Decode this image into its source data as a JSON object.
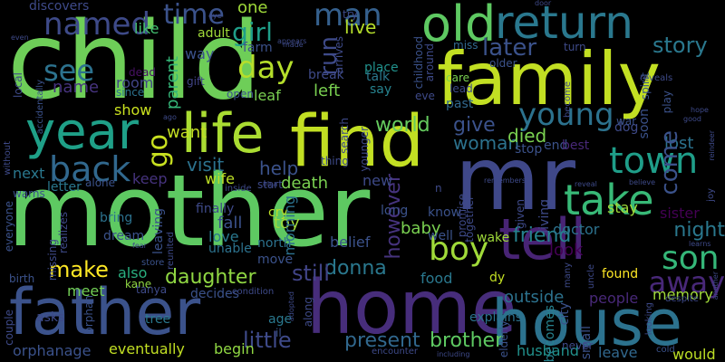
{
  "words": [
    {
      "text": "child",
      "color": "#6ece58",
      "vertical": false
    },
    {
      "text": "mother",
      "color": "#5ec962",
      "vertical": false
    },
    {
      "text": "family",
      "color": "#c2df23",
      "vertical": false
    },
    {
      "text": "home",
      "color": "#472d7b",
      "vertical": false
    },
    {
      "text": "mr",
      "color": "#3f4889",
      "vertical": false
    },
    {
      "text": "find",
      "color": "#c2df23",
      "vertical": false
    },
    {
      "text": "father",
      "color": "#3b528b",
      "vertical": false
    },
    {
      "text": "house",
      "color": "#2c728e",
      "vertical": false
    },
    {
      "text": "tell",
      "color": "#482475",
      "vertical": false
    },
    {
      "text": "life",
      "color": "#aadc32",
      "vertical": false
    },
    {
      "text": "year",
      "color": "#1fa088",
      "vertical": false
    },
    {
      "text": "old",
      "color": "#5ec962",
      "vertical": false
    },
    {
      "text": "return",
      "color": "#2a788e",
      "vertical": false
    },
    {
      "text": "take",
      "color": "#38b977",
      "vertical": false
    },
    {
      "text": "town",
      "color": "#1f9e89",
      "vertical": false
    },
    {
      "text": "young",
      "color": "#2c728e",
      "vertical": false
    },
    {
      "text": "boy",
      "color": "#a0da39",
      "vertical": false
    },
    {
      "text": "back",
      "color": "#31688e",
      "vertical": false
    },
    {
      "text": "son",
      "color": "#35b779",
      "vertical": false
    },
    {
      "text": "away",
      "color": "#482878",
      "vertical": false
    },
    {
      "text": "named",
      "color": "#3e4a89",
      "vertical": false
    },
    {
      "text": "man",
      "color": "#35608d",
      "vertical": false
    },
    {
      "text": "later",
      "color": "#3b528b",
      "vertical": false
    },
    {
      "text": "day",
      "color": "#b5de2b",
      "vertical": false
    },
    {
      "text": "see",
      "color": "#2c728e",
      "vertical": false
    },
    {
      "text": "time",
      "color": "#3b528b",
      "vertical": false
    },
    {
      "text": "girl",
      "color": "#1f9e89",
      "vertical": false
    },
    {
      "text": "story",
      "color": "#2a788e",
      "vertical": false
    },
    {
      "text": "little",
      "color": "#3e4a89",
      "vertical": false
    },
    {
      "text": "present",
      "color": "#31688e",
      "vertical": false
    },
    {
      "text": "brother",
      "color": "#5ec962",
      "vertical": false
    },
    {
      "text": "daughter",
      "color": "#90d743",
      "vertical": false
    },
    {
      "text": "donna",
      "color": "#2a788e",
      "vertical": false
    },
    {
      "text": "make",
      "color": "#fde725",
      "vertical": false
    },
    {
      "text": "still",
      "color": "#414487",
      "vertical": false
    },
    {
      "text": "friend",
      "color": "#26828e",
      "vertical": false
    },
    {
      "text": "night",
      "color": "#2a788e",
      "vertical": false
    },
    {
      "text": "world",
      "color": "#65cb5e",
      "vertical": false
    },
    {
      "text": "give",
      "color": "#3b528b",
      "vertical": false
    },
    {
      "text": "woman",
      "color": "#2c728e",
      "vertical": false
    },
    {
      "text": "died",
      "color": "#7ad151",
      "vertical": false
    },
    {
      "text": "visit",
      "color": "#2c728e",
      "vertical": false
    },
    {
      "text": "lost",
      "color": "#2c728e",
      "vertical": false
    },
    {
      "text": "come",
      "color": "#3b528b",
      "vertical": true
    },
    {
      "text": "go",
      "color": "#c8e020",
      "vertical": true
    },
    {
      "text": "run",
      "color": "#3e4a89",
      "vertical": true
    },
    {
      "text": "however",
      "color": "#46337e",
      "vertical": true
    },
    {
      "text": "live",
      "color": "#b5de2b",
      "vertical": false
    },
    {
      "text": "like",
      "color": "#44bf70",
      "vertical": false
    },
    {
      "text": "one",
      "color": "#9fda3a",
      "vertical": false
    },
    {
      "text": "parent",
      "color": "#35b779",
      "vertical": true
    },
    {
      "text": "want",
      "color": "#c2df23",
      "vertical": false
    },
    {
      "text": "help",
      "color": "#3b528b",
      "vertical": false
    },
    {
      "text": "left",
      "color": "#7ad151",
      "vertical": false
    },
    {
      "text": "leaf",
      "color": "#7ad151",
      "vertical": false
    },
    {
      "text": "name",
      "color": "#46337e",
      "vertical": false
    },
    {
      "text": "room",
      "color": "#414487",
      "vertical": false
    },
    {
      "text": "way",
      "color": "#3b528b",
      "vertical": false
    },
    {
      "text": "adult",
      "color": "#a0da39",
      "vertical": false
    },
    {
      "text": "farm",
      "color": "#3b528b",
      "vertical": false
    },
    {
      "text": "show",
      "color": "#cae11f",
      "vertical": false
    },
    {
      "text": "also",
      "color": "#29af7f",
      "vertical": false
    },
    {
      "text": "meet",
      "color": "#73d056",
      "vertical": false
    },
    {
      "text": "next",
      "color": "#2a788e",
      "vertical": false
    },
    {
      "text": "letter",
      "color": "#2a788e",
      "vertical": false
    },
    {
      "text": "keep",
      "color": "#46337e",
      "vertical": false
    },
    {
      "text": "wife",
      "color": "#bddf26",
      "vertical": false
    },
    {
      "text": "alone",
      "color": "#3b528b",
      "vertical": false
    },
    {
      "text": "death",
      "color": "#7ad151",
      "vertical": false
    },
    {
      "text": "fall",
      "color": "#3b528b",
      "vertical": false
    },
    {
      "text": "finally",
      "color": "#3e4a89",
      "vertical": false
    },
    {
      "text": "love",
      "color": "#2a788e",
      "vertical": false
    },
    {
      "text": "unable",
      "color": "#2c728e",
      "vertical": false
    },
    {
      "text": "toy",
      "color": "#9fda3a",
      "vertical": false
    },
    {
      "text": "cry",
      "color": "#bddf26",
      "vertical": false
    },
    {
      "text": "move",
      "color": "#3b528b",
      "vertical": false
    },
    {
      "text": "north",
      "color": "#2c728e",
      "vertical": false
    },
    {
      "text": "morning",
      "color": "#2c728e",
      "vertical": true
    },
    {
      "text": "belief",
      "color": "#3b528b",
      "vertical": false
    },
    {
      "text": "baby",
      "color": "#7ad151",
      "vertical": false
    },
    {
      "text": "know",
      "color": "#3b528b",
      "vertical": false
    },
    {
      "text": "well",
      "color": "#3b528b",
      "vertical": false
    },
    {
      "text": "wake",
      "color": "#9fda3a",
      "vertical": false
    },
    {
      "text": "food",
      "color": "#2a788e",
      "vertical": false
    },
    {
      "text": "look",
      "color": "#440154",
      "vertical": false
    },
    {
      "text": "found",
      "color": "#fde725",
      "vertical": false
    },
    {
      "text": "doctor",
      "color": "#2c728e",
      "vertical": false
    },
    {
      "text": "outside",
      "color": "#2c728e",
      "vertical": false
    },
    {
      "text": "memory",
      "color": "#a0da39",
      "vertical": false
    },
    {
      "text": "people",
      "color": "#482878",
      "vertical": false
    },
    {
      "text": "explains",
      "color": "#2c728e",
      "vertical": false
    },
    {
      "text": "husband",
      "color": "#21918c",
      "vertical": false
    },
    {
      "text": "leave",
      "color": "#31688e",
      "vertical": false
    },
    {
      "text": "would",
      "color": "#bddf26",
      "vertical": false
    },
    {
      "text": "eventually",
      "color": "#c2df23",
      "vertical": false
    },
    {
      "text": "begin",
      "color": "#90d743",
      "vertical": false
    },
    {
      "text": "tree",
      "color": "#2a788e",
      "vertical": false
    },
    {
      "text": "decides",
      "color": "#3b528b",
      "vertical": false
    },
    {
      "text": "orphanage",
      "color": "#3b528b",
      "vertical": false
    },
    {
      "text": "asks",
      "color": "#3e4a89",
      "vertical": false
    },
    {
      "text": "age",
      "color": "#2a788e",
      "vertical": false
    },
    {
      "text": "dream",
      "color": "#3b528b",
      "vertical": false
    },
    {
      "text": "bring",
      "color": "#2c728e",
      "vertical": false
    },
    {
      "text": "stay",
      "color": "#a0da39",
      "vertical": false
    },
    {
      "text": "sister",
      "color": "#440154",
      "vertical": false
    },
    {
      "text": "small",
      "color": "#3b528b",
      "vertical": true
    },
    {
      "text": "becomes",
      "color": "#26828e",
      "vertical": true
    },
    {
      "text": "talk",
      "color": "#2a788e",
      "vertical": false
    },
    {
      "text": "say",
      "color": "#26828e",
      "vertical": false
    },
    {
      "text": "care",
      "color": "#7ad151",
      "vertical": false
    },
    {
      "text": "past",
      "color": "#31688e",
      "vertical": false
    },
    {
      "text": "place",
      "color": "#21918c",
      "vertical": false
    },
    {
      "text": "break",
      "color": "#3e4a89",
      "vertical": false
    },
    {
      "text": "open",
      "color": "#3b528b",
      "vertical": false
    },
    {
      "text": "gift",
      "color": "#414487",
      "vertical": false
    },
    {
      "text": "kane",
      "color": "#90d743",
      "vertical": false
    },
    {
      "text": "since",
      "color": "#2c728e",
      "vertical": false
    },
    {
      "text": "dead",
      "color": "#471164",
      "vertical": false
    },
    {
      "text": "new",
      "color": "#3e4a89",
      "vertical": false
    },
    {
      "text": "thing",
      "color": "#3e4a89",
      "vertical": false
    },
    {
      "text": "long",
      "color": "#3b528b",
      "vertical": false
    },
    {
      "text": "end",
      "color": "#3b528b",
      "vertical": false
    },
    {
      "text": "best",
      "color": "#482878",
      "vertical": false
    },
    {
      "text": "soon",
      "color": "#3b528b",
      "vertical": true
    },
    {
      "text": "stop",
      "color": "#3b528b",
      "vertical": false
    },
    {
      "text": "dog",
      "color": "#3e4a89",
      "vertical": false
    },
    {
      "text": "war",
      "color": "#3b528b",
      "vertical": false
    },
    {
      "text": "eve",
      "color": "#3e4a89",
      "vertical": false
    },
    {
      "text": "lead",
      "color": "#3e4a89",
      "vertical": false
    },
    {
      "text": "miss",
      "color": "#31688e",
      "vertical": false
    },
    {
      "text": "older",
      "color": "#3b528b",
      "vertical": false
    },
    {
      "text": "turn",
      "color": "#3e4a89",
      "vertical": false
    },
    {
      "text": "discovers",
      "color": "#3e4a89",
      "vertical": false
    },
    {
      "text": "arrives",
      "color": "#3e4a89",
      "vertical": true
    },
    {
      "text": "childhood",
      "color": "#3b528b",
      "vertical": true
    },
    {
      "text": "around",
      "color": "#3e4a89",
      "vertical": true
    },
    {
      "text": "local",
      "color": "#3e4a89",
      "vertical": true
    },
    {
      "text": "accidentally",
      "color": "#3b528b",
      "vertical": true
    },
    {
      "text": "without",
      "color": "#3e4a89",
      "vertical": true
    },
    {
      "text": "warns",
      "color": "#3b528b",
      "vertical": false
    },
    {
      "text": "everyone",
      "color": "#3b528b",
      "vertical": true
    },
    {
      "text": "missing",
      "color": "#3e4a89",
      "vertical": true
    },
    {
      "text": "birth",
      "color": "#3b528b",
      "vertical": false
    },
    {
      "text": "couple",
      "color": "#3e4a89",
      "vertical": true
    },
    {
      "text": "realizes",
      "color": "#3e4a89",
      "vertical": true
    },
    {
      "text": "orphan",
      "color": "#3b528b",
      "vertical": true
    },
    {
      "text": "tanya",
      "color": "#3e4a89",
      "vertical": false
    },
    {
      "text": "il",
      "color": "#3b528b",
      "vertical": false
    },
    {
      "text": "along",
      "color": "#3e4a89",
      "vertical": true
    },
    {
      "text": "reunited",
      "color": "#3e4a89",
      "vertical": true
    },
    {
      "text": "leaving",
      "color": "#3b528b",
      "vertical": true
    },
    {
      "text": "store",
      "color": "#3b528b",
      "vertical": false
    },
    {
      "text": "inside",
      "color": "#3e4a89",
      "vertical": false
    },
    {
      "text": "start",
      "color": "#3e4a89",
      "vertical": false
    },
    {
      "text": "condition",
      "color": "#3e4a89",
      "vertical": false
    },
    {
      "text": "adopted",
      "color": "#3e4a89",
      "vertical": true
    },
    {
      "text": "encounter",
      "color": "#3e4a89",
      "vertical": false
    },
    {
      "text": "including",
      "color": "#3e4a89",
      "vertical": false
    },
    {
      "text": "elderly",
      "color": "#3b528b",
      "vertical": true
    },
    {
      "text": "never",
      "color": "#3e4a89",
      "vertical": false
    },
    {
      "text": "city",
      "color": "#3b528b",
      "vertical": true
    },
    {
      "text": "many",
      "color": "#3e4a89",
      "vertical": true
    },
    {
      "text": "cold",
      "color": "#3b528b",
      "vertical": false
    },
    {
      "text": "despite",
      "color": "#3e4a89",
      "vertical": false
    },
    {
      "text": "promise",
      "color": "#3e4a89",
      "vertical": true
    },
    {
      "text": "together",
      "color": "#3e4a89",
      "vertical": true
    },
    {
      "text": "given",
      "color": "#3e4a89",
      "vertical": true
    },
    {
      "text": "living",
      "color": "#3e4a89",
      "vertical": true
    },
    {
      "text": "uncle",
      "color": "#3e4a89",
      "vertical": true
    },
    {
      "text": "dy",
      "color": "#c2df23",
      "vertical": false
    },
    {
      "text": "reveal",
      "color": "#3e4a89",
      "vertical": false
    },
    {
      "text": "believe",
      "color": "#3e4a89",
      "vertical": false
    },
    {
      "text": "remembers",
      "color": "#3e4a89",
      "vertical": false
    },
    {
      "text": "younger",
      "color": "#3e4a89",
      "vertical": true
    },
    {
      "text": "search",
      "color": "#3e4a89",
      "vertical": true
    },
    {
      "text": "elsa",
      "color": "#3e4a89",
      "vertical": false
    },
    {
      "text": "appears",
      "color": "#3e4a89",
      "vertical": false
    },
    {
      "text": "made",
      "color": "#3e4a89",
      "vertical": false
    },
    {
      "text": "eye",
      "color": "#3e4a89",
      "vertical": false
    },
    {
      "text": "door",
      "color": "#3e4a89",
      "vertical": false
    },
    {
      "text": "even",
      "color": "#3e4a89",
      "vertical": false
    },
    {
      "text": "spirit",
      "color": "#3b528b",
      "vertical": true
    },
    {
      "text": "play",
      "color": "#3b528b",
      "vertical": true
    },
    {
      "text": "become",
      "color": "#3e4a89",
      "vertical": true
    },
    {
      "text": "reveals",
      "color": "#3e4a89",
      "vertical": false
    },
    {
      "text": "good",
      "color": "#3e4a89",
      "vertical": false
    },
    {
      "text": "joy",
      "color": "#3e4a89",
      "vertical": true
    },
    {
      "text": "learns",
      "color": "#3e4a89",
      "vertical": false
    },
    {
      "text": "reindeer",
      "color": "#3e4a89",
      "vertical": true
    },
    {
      "text": "another",
      "color": "#3e4a89",
      "vertical": true
    },
    {
      "text": "fear",
      "color": "#3e4a89",
      "vertical": false
    },
    {
      "text": "hope",
      "color": "#3e4a89",
      "vertical": false
    },
    {
      "text": "ago",
      "color": "#3e4a89",
      "vertical": false
    },
    {
      "text": "looking",
      "color": "#3e4a89",
      "vertical": true
    },
    {
      "text": "n",
      "color": "#3e4a89",
      "vertical": false
    },
    {
      "text": "try",
      "color": "#3e4a89",
      "vertical": false
    }
  ]
}
